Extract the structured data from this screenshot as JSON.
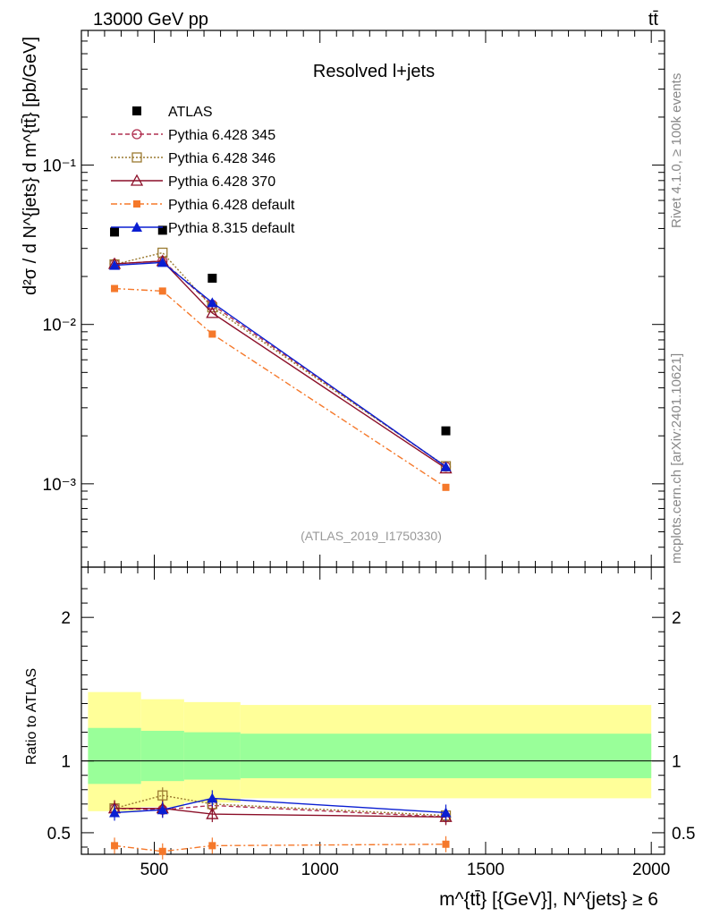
{
  "header": {
    "left": "13000 GeV pp",
    "right": "tt̄"
  },
  "side_labels": {
    "rivet": "Rivet 4.1.0, ≥ 100k events",
    "mcplots": "mcplots.cern.ch [arXiv:2401.10621]"
  },
  "chart_data": [
    {
      "type": "scatter",
      "title": "Resolved l+jets",
      "watermark": "(ATLAS_2019_I1750330)",
      "ylabel": "d²σ / d N^{jets} d m^{tt̄} [pb/GeV]",
      "yscale": "log",
      "ylim": [
        0.0003,
        0.7
      ],
      "xlim": [
        280,
        2040
      ],
      "x_bins": [
        [
          300,
          460
        ],
        [
          460,
          590
        ],
        [
          590,
          760
        ],
        [
          760,
          2000
        ]
      ],
      "y_ticks": [
        {
          "value": 0.1,
          "label": "10⁻¹"
        },
        {
          "value": 0.01,
          "label": "10⁻²"
        },
        {
          "value": 0.001,
          "label": "10⁻³"
        }
      ],
      "x": [
        380,
        525,
        675,
        1380
      ],
      "series": [
        {
          "name": "ATLAS",
          "values": [
            0.038,
            0.039,
            0.0195,
            0.00215
          ],
          "color": "#000000",
          "marker": "filled-square",
          "style": "none"
        },
        {
          "name": "Pythia 6.428 345",
          "values": [
            0.024,
            0.025,
            0.0133,
            0.00128
          ],
          "color": "#b03050",
          "marker": "open-circle",
          "style": "dashed"
        },
        {
          "name": "Pythia 6.428 346",
          "values": [
            0.0238,
            0.0282,
            0.0128,
            0.00129
          ],
          "color": "#9a7a30",
          "marker": "open-square",
          "style": "dotted"
        },
        {
          "name": "Pythia 6.428 370",
          "values": [
            0.024,
            0.025,
            0.0118,
            0.00125
          ],
          "color": "#8b0f28",
          "marker": "open-triangle",
          "style": "solid"
        },
        {
          "name": "Pythia 6.428 default",
          "values": [
            0.0168,
            0.0162,
            0.0087,
            0.00095
          ],
          "color": "#f5782a",
          "marker": "filled-square-small",
          "style": "dashdot"
        },
        {
          "name": "Pythia 8.315 default",
          "values": [
            0.0235,
            0.0245,
            0.0137,
            0.00128
          ],
          "color": "#0a1ed2",
          "marker": "filled-triangle",
          "style": "solid"
        }
      ]
    },
    {
      "type": "scatter",
      "ylabel": "Ratio to ATLAS",
      "xlabel": "m^{tt̄} [{GeV}], N^{jets} ≥ 6",
      "ylim": [
        0.35,
        2.35
      ],
      "xlim": [
        280,
        2040
      ],
      "x_ticks": [
        500,
        1000,
        1500,
        2000
      ],
      "y_ticks": [
        0.5,
        1,
        2
      ],
      "band_yellow": [
        [
          0.65,
          1.48
        ],
        [
          0.68,
          1.43
        ],
        [
          0.71,
          1.41
        ],
        [
          0.74,
          1.39
        ]
      ],
      "band_green": [
        [
          0.84,
          1.23
        ],
        [
          0.86,
          1.21
        ],
        [
          0.87,
          1.2
        ],
        [
          0.88,
          1.19
        ]
      ],
      "x": [
        380,
        525,
        675,
        1380
      ],
      "series": [
        {
          "name": "Pythia 6.428 345",
          "values": [
            0.67,
            0.66,
            0.69,
            0.61
          ]
        },
        {
          "name": "Pythia 6.428 346",
          "values": [
            0.67,
            0.76,
            0.7,
            0.62
          ]
        },
        {
          "name": "Pythia 6.428 370",
          "values": [
            0.67,
            0.67,
            0.63,
            0.61
          ]
        },
        {
          "name": "Pythia 6.428 default",
          "values": [
            0.41,
            0.37,
            0.41,
            0.42
          ]
        },
        {
          "name": "Pythia 8.315 default",
          "values": [
            0.64,
            0.66,
            0.74,
            0.64
          ]
        }
      ]
    }
  ]
}
